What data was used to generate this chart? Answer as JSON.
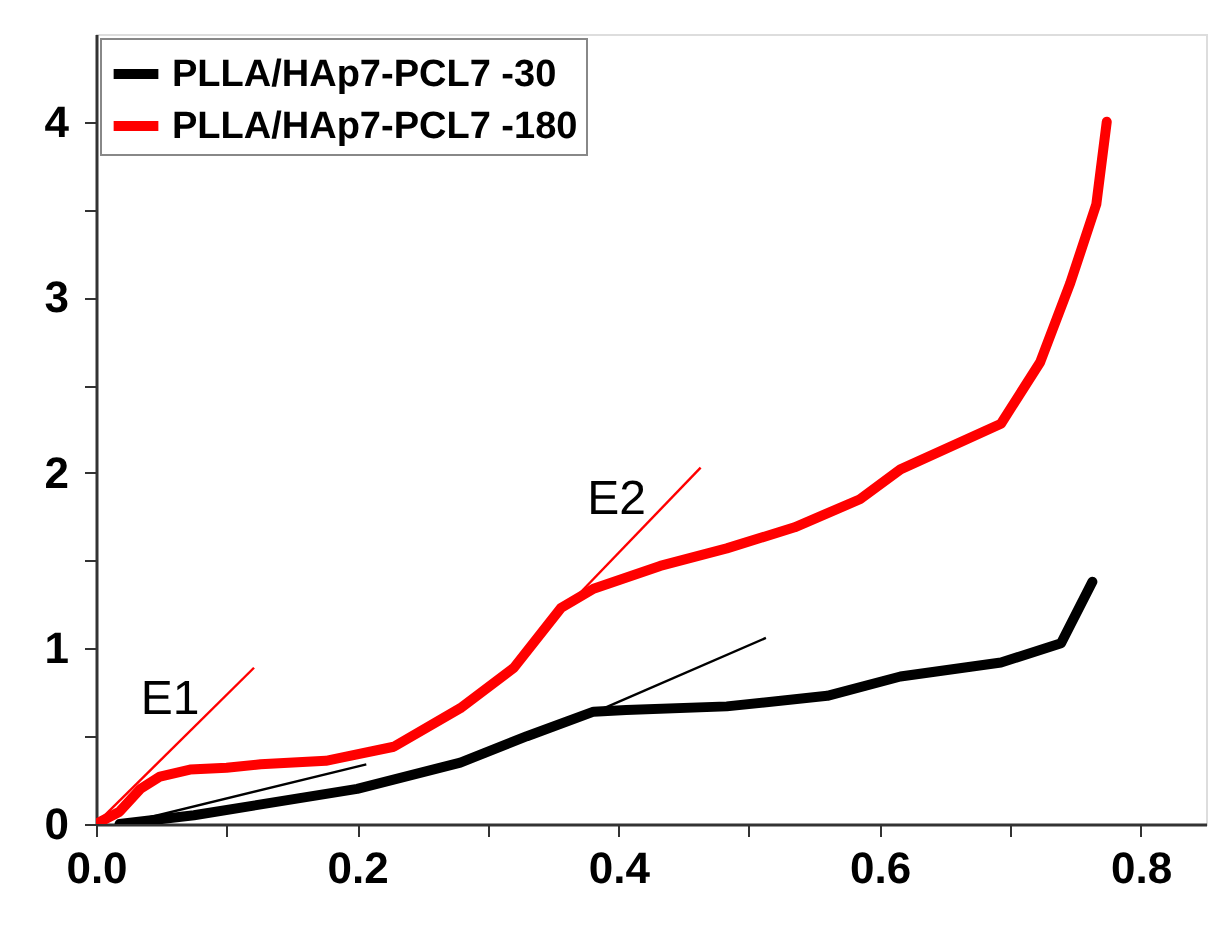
{
  "chart_data": {
    "type": "line",
    "xlim": [
      0,
      0.85
    ],
    "ylim": [
      0,
      4.5
    ],
    "xticks": [
      {
        "value": 0,
        "label": "0.0"
      },
      {
        "value": 0.1,
        "label": null
      },
      {
        "value": 0.2,
        "label": "0.2"
      },
      {
        "value": 0.3,
        "label": null
      },
      {
        "value": 0.4,
        "label": "0.4"
      },
      {
        "value": 0.5,
        "label": null
      },
      {
        "value": 0.6,
        "label": "0.6"
      },
      {
        "value": 0.7,
        "label": null
      },
      {
        "value": 0.8,
        "label": "0.8"
      }
    ],
    "yticks": [
      0,
      {
        "value": 0.5,
        "label": null
      },
      1,
      {
        "value": 1.5,
        "label": null
      },
      2,
      {
        "value": 2.5,
        "label": null
      },
      3,
      {
        "value": 3.5,
        "label": null
      },
      4
    ],
    "grid": false,
    "legend": "top left",
    "line_style": "solid",
    "marker": "none",
    "series": [
      {
        "name": "PLLA/HAp7-PCL7 -30",
        "color": "#000000",
        "x": [
          0.018,
          0.075,
          0.2,
          0.279,
          0.33,
          0.381,
          0.406,
          0.483,
          0.56,
          0.616,
          0.693,
          0.739,
          0.763
        ],
        "values": [
          0,
          0.05,
          0.2,
          0.35,
          0.5,
          0.64,
          0.65,
          0.67,
          0.73,
          0.84,
          0.92,
          1.03,
          1.38
        ]
      },
      {
        "name": "PLLA/HAp7-PCL7 -180",
        "color": "#ff0000",
        "x": [
          0,
          0.018,
          0.034,
          0.049,
          0.072,
          0.1,
          0.126,
          0.176,
          0.228,
          0.279,
          0.32,
          0.356,
          0.381,
          0.432,
          0.483,
          0.535,
          0.585,
          0.616,
          0.693,
          0.723,
          0.746,
          0.766,
          0.774
        ],
        "values": [
          0,
          0.07,
          0.2,
          0.27,
          0.31,
          0.32,
          0.34,
          0.36,
          0.44,
          0.66,
          0.89,
          1.23,
          1.34,
          1.47,
          1.57,
          1.69,
          1.85,
          2.02,
          2.28,
          2.63,
          3.08,
          3.53,
          4.0
        ]
      },
      {
        "type": "line",
        "color": "#ff0000",
        "x": [
          0,
          0.121
        ],
        "values": [
          0,
          0.89
        ]
      },
      {
        "type": "line",
        "color": "#ff0000",
        "x": [
          0.366,
          0.463
        ],
        "values": [
          1.28,
          2.03
        ]
      },
      {
        "type": "line",
        "color": "#000000",
        "x": [
          0.02,
          0.207
        ],
        "values": [
          0,
          0.34
        ]
      },
      {
        "type": "line",
        "color": "#000000",
        "x": [
          0.386,
          0.513
        ],
        "values": [
          0.65,
          1.06
        ]
      }
    ],
    "annotations": [
      "E1",
      "E2"
    ]
  }
}
